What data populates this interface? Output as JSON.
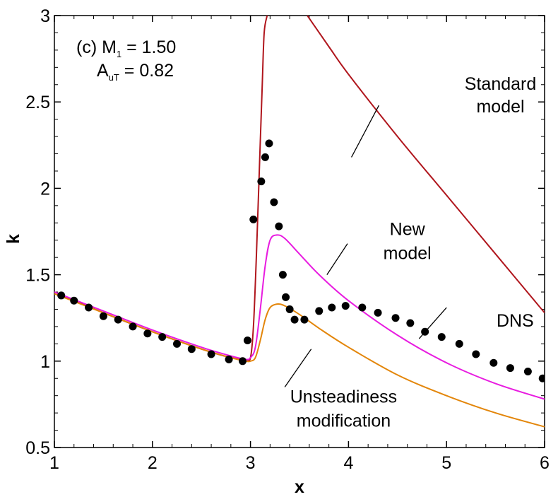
{
  "chart_data": {
    "type": "line",
    "xlabel": "x",
    "ylabel": "k",
    "xlim": [
      1,
      6
    ],
    "ylim": [
      0.5,
      3
    ],
    "x_ticks": [
      "1",
      "2",
      "3",
      "4",
      "5",
      "6"
    ],
    "y_ticks": [
      "0.5",
      "1",
      "1.5",
      "2",
      "2.5",
      "3"
    ],
    "x_tick_values": [
      1,
      2,
      3,
      4,
      5,
      6
    ],
    "y_tick_values": [
      0.5,
      1,
      1.5,
      2,
      2.5,
      3
    ],
    "grid": false,
    "case_label": {
      "prefix": "(c) M",
      "m_sub": "1",
      "m_value": " = 1.50",
      "a_main": "A",
      "a_sub": "uT",
      "a_value": " = 0.82"
    },
    "series": [
      {
        "key": "standard",
        "label_lines": [
          "Standard",
          "model"
        ],
        "color": "#b0161d",
        "x": [
          1.0,
          1.5,
          2.0,
          2.5,
          2.8,
          2.95,
          3.0,
          3.03,
          3.06,
          3.09,
          3.12,
          3.14,
          3.17
        ],
        "y": [
          1.4,
          1.28,
          1.17,
          1.07,
          1.02,
          1.01,
          1.02,
          1.2,
          1.6,
          2.1,
          2.6,
          2.9,
          3.0
        ],
        "x2": [
          3.58,
          3.8,
          4.0,
          4.5,
          5.0,
          5.5,
          6.0
        ],
        "y2": [
          3.0,
          2.82,
          2.66,
          2.3,
          1.96,
          1.62,
          1.28
        ]
      },
      {
        "key": "new",
        "label_lines": [
          "New",
          "model"
        ],
        "color": "#e81ce0",
        "x": [
          1.0,
          1.5,
          2.0,
          2.5,
          2.8,
          2.95,
          3.0,
          3.05,
          3.1,
          3.15,
          3.2,
          3.27,
          3.35,
          3.5,
          3.7,
          4.0,
          4.5,
          5.0,
          5.5,
          6.0
        ],
        "y": [
          1.4,
          1.29,
          1.18,
          1.08,
          1.03,
          1.01,
          1.02,
          1.08,
          1.3,
          1.55,
          1.7,
          1.73,
          1.71,
          1.62,
          1.5,
          1.35,
          1.15,
          0.99,
          0.87,
          0.78
        ]
      },
      {
        "key": "unsteady",
        "label_lines": [
          "Unsteadiness",
          "modification"
        ],
        "color": "#e3860a",
        "x": [
          1.0,
          1.5,
          2.0,
          2.5,
          2.8,
          2.95,
          3.0,
          3.05,
          3.1,
          3.15,
          3.2,
          3.27,
          3.35,
          3.5,
          3.7,
          4.0,
          4.5,
          5.0,
          5.5,
          6.0
        ],
        "y": [
          1.39,
          1.28,
          1.17,
          1.07,
          1.02,
          1.0,
          1.0,
          1.02,
          1.12,
          1.24,
          1.31,
          1.33,
          1.32,
          1.27,
          1.19,
          1.08,
          0.92,
          0.8,
          0.7,
          0.62
        ]
      },
      {
        "key": "dns",
        "label_lines": [
          "DNS"
        ],
        "color": "#000000",
        "marker": "circle",
        "x": [
          1.07,
          1.2,
          1.35,
          1.5,
          1.65,
          1.8,
          1.95,
          2.1,
          2.25,
          2.4,
          2.6,
          2.78,
          2.92,
          2.97,
          3.03,
          3.11,
          3.15,
          3.19,
          3.24,
          3.29,
          3.33,
          3.36,
          3.4,
          3.45,
          3.55,
          3.7,
          3.83,
          3.97,
          4.14,
          4.3,
          4.48,
          4.63,
          4.78,
          4.95,
          5.13,
          5.3,
          5.48,
          5.65,
          5.83,
          5.98
        ],
        "y": [
          1.38,
          1.35,
          1.31,
          1.26,
          1.24,
          1.2,
          1.16,
          1.14,
          1.1,
          1.07,
          1.04,
          1.01,
          1.0,
          1.12,
          1.82,
          2.04,
          2.18,
          2.26,
          1.92,
          1.78,
          1.5,
          1.37,
          1.3,
          1.24,
          1.24,
          1.29,
          1.31,
          1.32,
          1.31,
          1.28,
          1.25,
          1.22,
          1.17,
          1.14,
          1.1,
          1.04,
          0.99,
          0.96,
          0.94,
          0.9
        ]
      }
    ],
    "annotations": [
      {
        "series": "standard",
        "text_x": 5.55,
        "text_y": [
          2.57,
          2.44
        ],
        "anchor": "middle",
        "leader": [
          [
            4.03,
            2.18
          ],
          [
            4.31,
            2.48
          ]
        ]
      },
      {
        "series": "new",
        "text_x": 4.6,
        "text_y": [
          1.73,
          1.59
        ],
        "anchor": "middle",
        "leader": [
          [
            3.78,
            1.5
          ],
          [
            3.99,
            1.68
          ]
        ]
      },
      {
        "series": "dns",
        "text_x": 5.7,
        "text_y": [
          1.2
        ],
        "anchor": "middle",
        "leader": [
          [
            4.72,
            1.13
          ],
          [
            5.0,
            1.31
          ]
        ]
      },
      {
        "series": "unsteady",
        "text_x": 3.95,
        "text_y": [
          0.76,
          0.62
        ],
        "anchor": "middle",
        "leader": [
          [
            3.35,
            0.85
          ],
          [
            3.62,
            1.07
          ]
        ]
      }
    ]
  }
}
